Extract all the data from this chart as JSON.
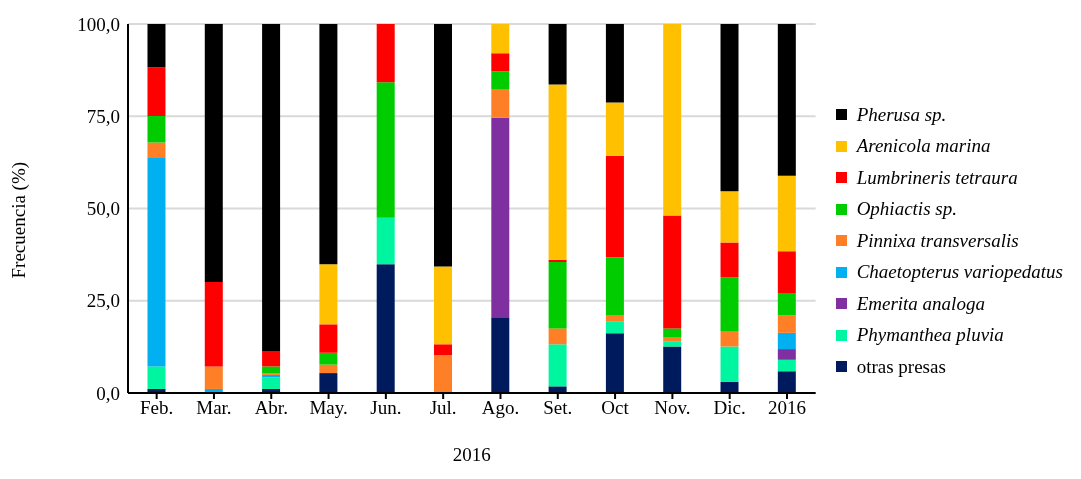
{
  "chart_data": {
    "type": "bar",
    "stacked": true,
    "xlabel": "2016",
    "ylabel": "Frecuencia (%)",
    "categories": [
      "Feb.",
      "Mar.",
      "Abr.",
      "May.",
      "Jun.",
      "Jul.",
      "Ago.",
      "Set.",
      "Oct",
      "Nov.",
      "Dic.",
      "2016"
    ],
    "series": [
      {
        "name": "otras presas",
        "color": "#001a5e",
        "values": [
          1.1,
          0,
          1.1,
          5.4,
          34.9,
          0,
          20.5,
          1.8,
          16.2,
          12.6,
          3.0,
          5.9
        ]
      },
      {
        "name": "Phymanthea pluvia",
        "color": "#00f5a0",
        "values": [
          6.1,
          0,
          3.1,
          0,
          12.6,
          0,
          0,
          11.4,
          3.1,
          1.3,
          9.6,
          3.1
        ]
      },
      {
        "name": "Emerita analoga",
        "color": "#7f2fa0",
        "values": [
          0,
          0,
          0,
          0,
          0,
          0,
          54.1,
          0,
          0,
          0,
          0,
          2.9
        ]
      },
      {
        "name": "Chaetopterus variopedatus",
        "color": "#00b0f0",
        "values": [
          56.5,
          1.1,
          0.7,
          0,
          0,
          0,
          0,
          0,
          0,
          0,
          0,
          4.4
        ]
      },
      {
        "name": "Pinnixa transversalis",
        "color": "#ff7f27",
        "values": [
          4.2,
          6.1,
          0.5,
          2.3,
          0,
          10.3,
          7.8,
          4.3,
          1.8,
          1.1,
          4.2,
          4.8
        ]
      },
      {
        "name": "Ophiactis sp.",
        "color": "#00cc00",
        "values": [
          7.2,
          0,
          1.8,
          3.2,
          36.7,
          0,
          4.8,
          18.0,
          15.7,
          2.5,
          14.5,
          6.0
        ]
      },
      {
        "name": "Lumbrineris tetraura",
        "color": "#ff0000",
        "values": [
          13.2,
          22.9,
          4.2,
          7.7,
          15.8,
          2.9,
          4.9,
          0.6,
          27.5,
          30.6,
          9.5,
          11.3
        ]
      },
      {
        "name": "Arenicola marina",
        "color": "#ffc000",
        "values": [
          0,
          0,
          0,
          16.3,
          0,
          21.1,
          7.9,
          47.5,
          14.4,
          51.9,
          13.9,
          20.5
        ]
      },
      {
        "name": "Pherusa sp.",
        "color": "#000000",
        "values": [
          11.7,
          69.9,
          88.6,
          65.1,
          0,
          65.7,
          0,
          16.4,
          21.3,
          0,
          45.3,
          41.1
        ]
      }
    ],
    "ylim": [
      0,
      100
    ],
    "yticks": [
      {
        "value": 0,
        "label": "0,0"
      },
      {
        "value": 25,
        "label": "25,0"
      },
      {
        "value": 50,
        "label": "50,0"
      },
      {
        "value": 75,
        "label": "75,0"
      },
      {
        "value": 100,
        "label": "100,0"
      }
    ],
    "grid": "y",
    "legend": "right"
  }
}
